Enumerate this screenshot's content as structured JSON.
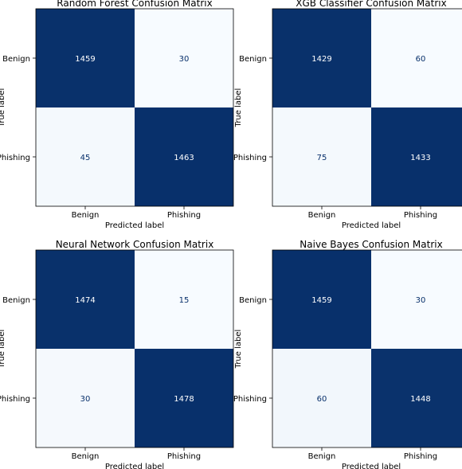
{
  "chart_data": [
    {
      "type": "heatmap",
      "title": "Random Forest Confusion Matrix",
      "xlabel": "Predicted label",
      "ylabel": "True label",
      "x_categories": [
        "Benign",
        "Phishing"
      ],
      "y_categories": [
        "Benign",
        "Phishing"
      ],
      "values": [
        [
          1459,
          30
        ],
        [
          45,
          1463
        ]
      ],
      "colormap": "Blues"
    },
    {
      "type": "heatmap",
      "title": "XGB Classifier Confusion Matrix",
      "xlabel": "Predicted label",
      "ylabel": "True label",
      "x_categories": [
        "Benign",
        "Phishing"
      ],
      "y_categories": [
        "Benign",
        "Phishing"
      ],
      "values": [
        [
          1429,
          60
        ],
        [
          75,
          1433
        ]
      ],
      "colormap": "Blues"
    },
    {
      "type": "heatmap",
      "title": "Neural Network Confusion Matrix",
      "xlabel": "Predicted label",
      "ylabel": "True label",
      "x_categories": [
        "Benign",
        "Phishing"
      ],
      "y_categories": [
        "Benign",
        "Phishing"
      ],
      "values": [
        [
          1474,
          15
        ],
        [
          30,
          1478
        ]
      ],
      "colormap": "Blues"
    },
    {
      "type": "heatmap",
      "title": "Naive Bayes Confusion Matrix",
      "xlabel": "Predicted label",
      "ylabel": "True label",
      "x_categories": [
        "Benign",
        "Phishing"
      ],
      "y_categories": [
        "Benign",
        "Phishing"
      ],
      "values": [
        [
          1459,
          30
        ],
        [
          60,
          1448
        ]
      ],
      "colormap": "Blues"
    }
  ],
  "colors": {
    "high": "#08306b",
    "low": "#f7fbff",
    "text_on_dark": "#ffffff",
    "text_on_light": "#08306b"
  }
}
